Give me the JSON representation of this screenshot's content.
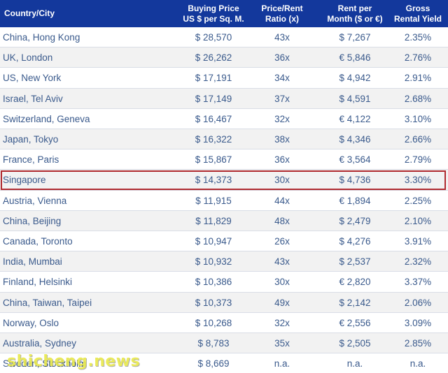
{
  "header": {
    "country": "Country/City",
    "price_line1": "Buying Price",
    "price_line2": "US $ per Sq. M.",
    "ratio_line1": "Price/Rent",
    "ratio_line2": "Ratio (x)",
    "rent_line1": "Rent per",
    "rent_line2": "Month ($ or €)",
    "yield_line1": "Gross",
    "yield_line2": "Rental Yield"
  },
  "rows": [
    {
      "country": "China, Hong Kong",
      "price": "$ 28,570",
      "ratio": "43x",
      "rent": "$ 7,267",
      "yield": "2.35%"
    },
    {
      "country": "UK, London",
      "price": "$ 26,262",
      "ratio": "36x",
      "rent": "€ 5,846",
      "yield": "2.76%"
    },
    {
      "country": "US, New York",
      "price": "$ 17,191",
      "ratio": "34x",
      "rent": "$ 4,942",
      "yield": "2.91%"
    },
    {
      "country": "Israel, Tel Aviv",
      "price": "$ 17,149",
      "ratio": "37x",
      "rent": "$ 4,591",
      "yield": "2.68%"
    },
    {
      "country": "Switzerland, Geneva",
      "price": "$ 16,467",
      "ratio": "32x",
      "rent": "€ 4,122",
      "yield": "3.10%"
    },
    {
      "country": "Japan, Tokyo",
      "price": "$ 16,322",
      "ratio": "38x",
      "rent": "$ 4,346",
      "yield": "2.66%"
    },
    {
      "country": "France, Paris",
      "price": "$ 15,867",
      "ratio": "36x",
      "rent": "€ 3,564",
      "yield": "2.79%"
    },
    {
      "country": "Singapore",
      "price": "$ 14,373",
      "ratio": "30x",
      "rent": "$ 4,736",
      "yield": "3.30%"
    },
    {
      "country": "Austria, Vienna",
      "price": "$ 11,915",
      "ratio": "44x",
      "rent": "€ 1,894",
      "yield": "2.25%"
    },
    {
      "country": "China, Beijing",
      "price": "$ 11,829",
      "ratio": "48x",
      "rent": "$ 2,479",
      "yield": "2.10%"
    },
    {
      "country": "Canada, Toronto",
      "price": "$ 10,947",
      "ratio": "26x",
      "rent": "$ 4,276",
      "yield": "3.91%"
    },
    {
      "country": "India, Mumbai",
      "price": "$ 10,932",
      "ratio": "43x",
      "rent": "$ 2,537",
      "yield": "2.32%"
    },
    {
      "country": "Finland, Helsinki",
      "price": "$ 10,386",
      "ratio": "30x",
      "rent": "€ 2,820",
      "yield": "3.37%"
    },
    {
      "country": "China, Taiwan, Taipei",
      "price": "$ 10,373",
      "ratio": "49x",
      "rent": "$ 2,142",
      "yield": "2.06%"
    },
    {
      "country": "Norway, Oslo",
      "price": "$ 10,268",
      "ratio": "32x",
      "rent": "€ 2,556",
      "yield": "3.09%"
    },
    {
      "country": "Australia, Sydney",
      "price": "$ 8,783",
      "ratio": "35x",
      "rent": "$ 2,505",
      "yield": "2.85%"
    },
    {
      "country": "Sweden, Stockholm",
      "price": "$ 8,669",
      "ratio": "n.a.",
      "rent": "n.a.",
      "yield": "n.a."
    }
  ],
  "highlighted_row": "Singapore",
  "watermark": "shicheng.news",
  "colors": {
    "header_bg": "#13389c",
    "text": "#3a5a8c",
    "highlight_border": "#b02a2f",
    "alt_row": "#f2f2f2"
  }
}
